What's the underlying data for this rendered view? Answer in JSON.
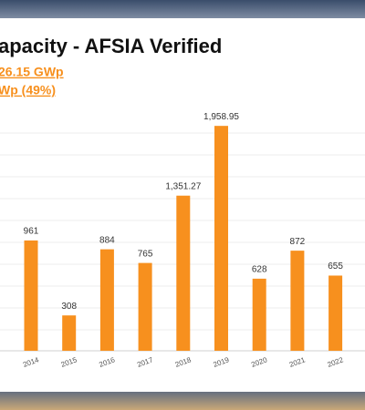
{
  "chart_data": {
    "type": "bar",
    "title": "apacity - AFSIA Verified",
    "subtitle_lines": [
      "26.15 GWp",
      "Wp (49%)"
    ],
    "categories": [
      "2014",
      "2015",
      "2016",
      "2017",
      "2018",
      "2019",
      "2020",
      "2021",
      "2022"
    ],
    "values": [
      961,
      308,
      884,
      765,
      1351.27,
      1958.95,
      628,
      872,
      655
    ],
    "value_labels": [
      "961",
      "308",
      "884",
      "765",
      "1,351.27",
      "1,958.95",
      "628",
      "872",
      "655"
    ],
    "color": "#f7901e"
  }
}
